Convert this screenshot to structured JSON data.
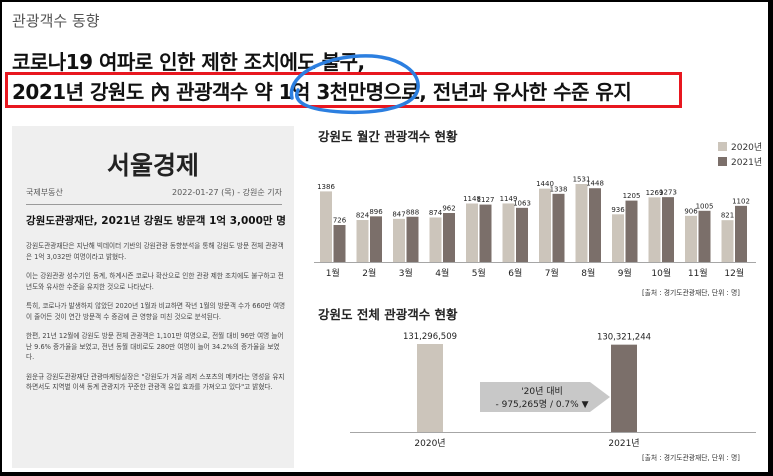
{
  "section_title": "관광객수 동향",
  "headline": {
    "line1": "코로나19 여파로 인한 제한 조치에도 불구,",
    "line2": "2021년 강원도 內 관광객수 약 1억 3천만명으로, 전년과 유사한 수준 유지"
  },
  "article": {
    "paper": "서울경제",
    "category": "국제부동산",
    "date_author": "2022-01-27 (목) - 강원순 기자",
    "title": "강원도관광재단, 2021년 강원도 방문객 1억 3,000만 명 …",
    "paragraphs": [
      "강원도관광재단은 지난해 빅데이터 기반의 강원관광 동향분석을 통해 강원도 방문 전체 관광객은 1억 3,032만 여명이라고 밝혔다.",
      "이는 강원관광 성수기인 동계, 하계시즌 코로나 확산으로 인한 관광 제한 조치에도 불구하고 전년도와 유사한 수준을 유지한 것으로 나타났다.",
      "특히, 코로나가 발생하지 않았던 2020년 1월과 비교하면 작년 1월의 방문객 수가 660만 여명이 줄어든 것이 연간 방문객 수 증감에 큰 영향을 미친 것으로 분석된다.",
      "한편, 21년 12월에 강원도 방문 전체 관광객은 1,101만 여명으로, 전월 대비 96만 여명 늘어난 9.6% 증가율을 보였고, 전년 동월 대비로도 280만 여명이 늘어 34.2%의 증가율을 보였다.",
      "원운규 강원도관광재단 관광마케팅실장은 \"강원도가 겨울 레저 스포츠의 메카라는 명성을 유지하면서도 지역별 이색 동계 관광지가 꾸준한 관광객 유입 효과를 가져오고 있다\"고 밝혔다."
    ]
  },
  "colors": {
    "series_2020": "#ccc5bb",
    "series_2021": "#7b6f6a",
    "highlight_box": "#e8171f",
    "circle": "#2c7fe0",
    "article_bg": "#efefef"
  },
  "chart_data": [
    {
      "type": "bar",
      "title": "강원도 월간 관광객수 현황",
      "categories": [
        "1월",
        "2월",
        "3월",
        "4월",
        "5월",
        "6월",
        "7월",
        "8월",
        "9월",
        "10월",
        "11월",
        "12월"
      ],
      "series": [
        {
          "name": "2020년",
          "values": [
            1386,
            824,
            847,
            874,
            1148,
            1149,
            1440,
            1531,
            936,
            1269,
            906,
            821
          ]
        },
        {
          "name": "2021년",
          "values": [
            726,
            896,
            888,
            962,
            1127,
            1063,
            1338,
            1448,
            1205,
            1273,
            1005,
            1102
          ]
        }
      ],
      "legend_position": "top-right",
      "source": "[출처 : 경기도관광재단, 단위 : 명]"
    },
    {
      "type": "bar",
      "title": "강원도 전체 관광객수 현황",
      "categories": [
        "2020년",
        "2021년"
      ],
      "values": [
        131296509,
        130321244
      ],
      "value_labels": [
        "131,296,509",
        "130,321,244"
      ],
      "annotation": {
        "line1": "'20년 대비",
        "line2": "- 975,265명 / 0.7% ▼"
      },
      "source": "[출처 : 경기도관광재단, 단위 : 명]"
    }
  ]
}
